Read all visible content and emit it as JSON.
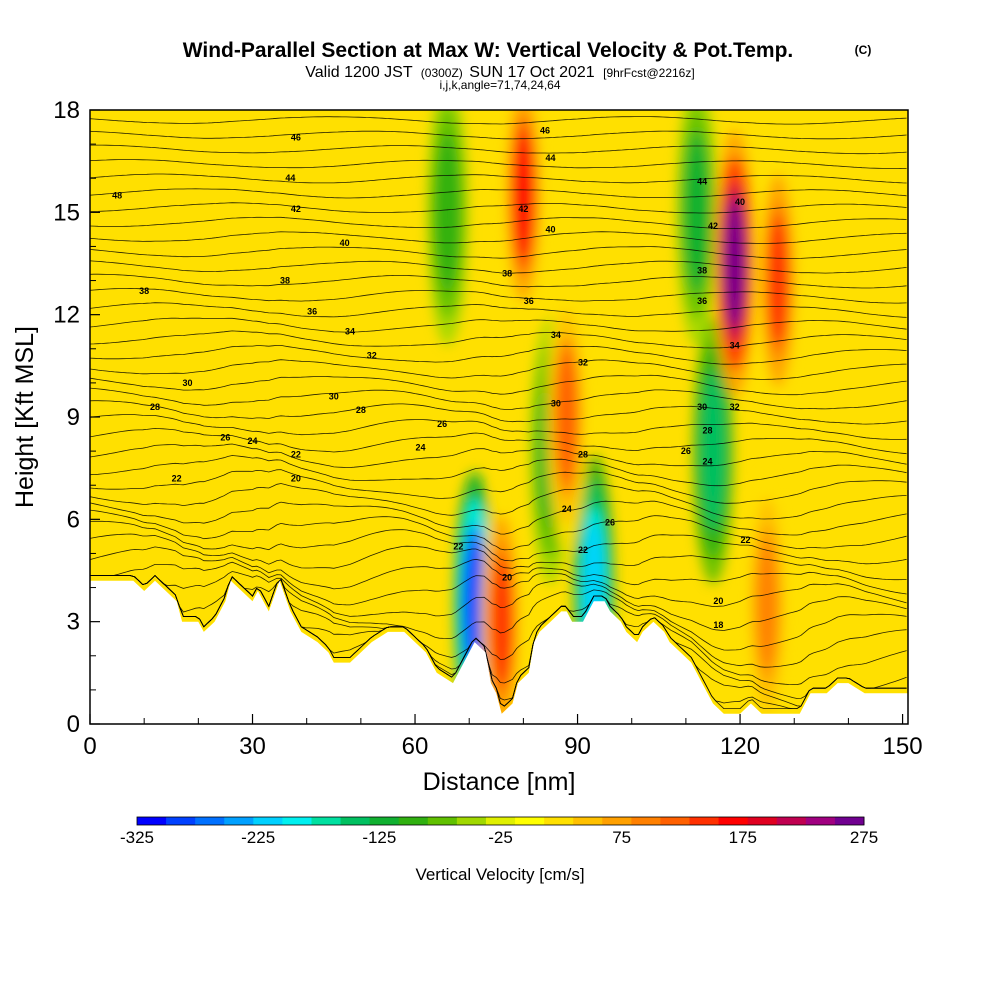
{
  "title": {
    "main": "Wind-Parallel Section at Max W: Vertical Velocity & Pot.Temp.",
    "copyright": "(C)",
    "valid_prefix": "Valid 1200 JST",
    "valid_utc": "(0300Z)",
    "valid_date": "SUN 17 Oct 2021",
    "forecast": "[9hrFcst@2216z]",
    "indices": "i,j,k,angle=71,74,24,64"
  },
  "chart_data": {
    "type": "heatmap",
    "xlabel": "Distance [nm]",
    "ylabel": "Height [Kft MSL]",
    "xlim": [
      0,
      151
    ],
    "ylim": [
      0,
      18
    ],
    "x_ticks": [
      0,
      30,
      60,
      90,
      120,
      150
    ],
    "x_tick_labels": [
      "0",
      "30",
      "60",
      "90",
      "120",
      "150"
    ],
    "y_ticks": [
      0,
      3,
      6,
      9,
      12,
      15,
      18
    ],
    "y_tick_labels": [
      "0",
      "3",
      "6",
      "9",
      "12",
      "15",
      "18"
    ],
    "grid": false,
    "colorbar": {
      "title": "Vertical Velocity [cm/s]",
      "min": -325,
      "max": 275,
      "step": 25,
      "tick_values": [
        -325,
        -225,
        -125,
        -25,
        75,
        175,
        275
      ],
      "tick_labels": [
        "-325",
        "-225",
        "-125",
        "-25",
        "75",
        "175",
        "275"
      ],
      "colors": [
        "#0000ff",
        "#0040ff",
        "#0070ff",
        "#00a0ff",
        "#00d0ff",
        "#00f0f0",
        "#00e0a0",
        "#00c060",
        "#10b030",
        "#30b010",
        "#60c000",
        "#a0d800",
        "#e0f000",
        "#ffff00",
        "#ffe000",
        "#ffc000",
        "#ffa000",
        "#ff8000",
        "#ff6000",
        "#ff3000",
        "#ff0000",
        "#e00020",
        "#c00050",
        "#a00080",
        "#700090"
      ]
    },
    "terrain": [
      [
        0,
        4.2
      ],
      [
        8,
        4.2
      ],
      [
        10,
        3.9
      ],
      [
        12,
        4.2
      ],
      [
        16,
        3.6
      ],
      [
        17,
        3.0
      ],
      [
        20,
        3.0
      ],
      [
        21,
        2.7
      ],
      [
        23,
        3.0
      ],
      [
        25,
        3.6
      ],
      [
        26,
        4.2
      ],
      [
        28,
        3.9
      ],
      [
        30,
        3.6
      ],
      [
        31,
        3.9
      ],
      [
        33,
        3.3
      ],
      [
        35,
        4.2
      ],
      [
        37,
        3.3
      ],
      [
        39,
        2.7
      ],
      [
        42,
        2.4
      ],
      [
        44,
        2.1
      ],
      [
        45,
        1.8
      ],
      [
        48,
        1.8
      ],
      [
        50,
        2.1
      ],
      [
        52,
        2.4
      ],
      [
        55,
        2.7
      ],
      [
        58,
        2.7
      ],
      [
        60,
        2.4
      ],
      [
        62,
        2.1
      ],
      [
        64,
        1.5
      ],
      [
        67,
        1.2
      ],
      [
        69,
        1.8
      ],
      [
        71,
        2.4
      ],
      [
        73,
        2.1
      ],
      [
        74,
        1.2
      ],
      [
        75,
        0.9
      ],
      [
        76,
        0.3
      ],
      [
        78,
        0.6
      ],
      [
        79,
        1.2
      ],
      [
        81,
        1.5
      ],
      [
        82,
        2.4
      ],
      [
        83,
        2.7
      ],
      [
        85,
        3.0
      ],
      [
        87,
        3.3
      ],
      [
        88,
        3.3
      ],
      [
        89,
        3.0
      ],
      [
        91,
        3.0
      ],
      [
        92,
        3.3
      ],
      [
        93,
        3.6
      ],
      [
        95,
        3.6
      ],
      [
        96,
        3.3
      ],
      [
        98,
        3.0
      ],
      [
        99,
        2.7
      ],
      [
        101,
        2.4
      ],
      [
        102,
        2.7
      ],
      [
        104,
        3.0
      ],
      [
        106,
        2.7
      ],
      [
        107,
        2.4
      ],
      [
        109,
        2.1
      ],
      [
        111,
        1.8
      ],
      [
        113,
        1.2
      ],
      [
        115,
        0.6
      ],
      [
        117,
        0.3
      ],
      [
        120,
        0.3
      ],
      [
        122,
        0.6
      ],
      [
        124,
        0.3
      ],
      [
        127,
        0.3
      ],
      [
        131,
        0.3
      ],
      [
        133,
        0.9
      ],
      [
        136,
        0.9
      ],
      [
        138,
        1.2
      ],
      [
        140,
        1.2
      ],
      [
        143,
        0.9
      ],
      [
        146,
        0.9
      ],
      [
        151,
        0.9
      ]
    ],
    "updraft_cores": [
      {
        "x": 80,
        "y": 15.5,
        "w": 175
      },
      {
        "x": 119,
        "y": 13.5,
        "w": 275
      },
      {
        "x": 127,
        "y": 13.0,
        "w": 150
      },
      {
        "x": 76,
        "y": 3.0,
        "w": 150
      },
      {
        "x": 88,
        "y": 9.0,
        "w": 140
      },
      {
        "x": 125,
        "y": 3.5,
        "w": 120
      }
    ],
    "downdraft_cores": [
      {
        "x": 71,
        "y": 3.5,
        "w": -300
      },
      {
        "x": 93,
        "y": 4.0,
        "w": -225
      },
      {
        "x": 115,
        "y": 8.0,
        "w": -150
      },
      {
        "x": 112,
        "y": 15.0,
        "w": -125
      },
      {
        "x": 66,
        "y": 15.0,
        "w": -100
      },
      {
        "x": 85,
        "y": 8.0,
        "w": -110
      }
    ],
    "theta_labels": [
      {
        "value": "48",
        "x": 5,
        "y": 15.5
      },
      {
        "value": "46",
        "x": 38,
        "y": 17.2
      },
      {
        "value": "44",
        "x": 37,
        "y": 16.0
      },
      {
        "value": "42",
        "x": 38,
        "y": 15.1
      },
      {
        "value": "40",
        "x": 47,
        "y": 14.1
      },
      {
        "value": "38",
        "x": 10,
        "y": 12.7
      },
      {
        "value": "38",
        "x": 36,
        "y": 13.0
      },
      {
        "value": "36",
        "x": 41,
        "y": 12.1
      },
      {
        "value": "34",
        "x": 48,
        "y": 11.5
      },
      {
        "value": "32",
        "x": 52,
        "y": 10.8
      },
      {
        "value": "30",
        "x": 18,
        "y": 10.0
      },
      {
        "value": "30",
        "x": 45,
        "y": 9.6
      },
      {
        "value": "28",
        "x": 12,
        "y": 9.3
      },
      {
        "value": "28",
        "x": 50,
        "y": 9.2
      },
      {
        "value": "26",
        "x": 25,
        "y": 8.4
      },
      {
        "value": "26",
        "x": 65,
        "y": 8.8
      },
      {
        "value": "24",
        "x": 30,
        "y": 8.3
      },
      {
        "value": "24",
        "x": 61,
        "y": 8.1
      },
      {
        "value": "22",
        "x": 38,
        "y": 7.9
      },
      {
        "value": "22",
        "x": 16,
        "y": 7.2
      },
      {
        "value": "20",
        "x": 38,
        "y": 7.2
      },
      {
        "value": "46",
        "x": 84,
        "y": 17.4
      },
      {
        "value": "44",
        "x": 85,
        "y": 16.6
      },
      {
        "value": "42",
        "x": 80,
        "y": 15.1
      },
      {
        "value": "40",
        "x": 85,
        "y": 14.5
      },
      {
        "value": "38",
        "x": 77,
        "y": 13.2
      },
      {
        "value": "36",
        "x": 81,
        "y": 12.4
      },
      {
        "value": "34",
        "x": 86,
        "y": 11.4
      },
      {
        "value": "32",
        "x": 91,
        "y": 10.6
      },
      {
        "value": "30",
        "x": 86,
        "y": 9.4
      },
      {
        "value": "28",
        "x": 91,
        "y": 7.9
      },
      {
        "value": "24",
        "x": 88,
        "y": 6.3
      },
      {
        "value": "26",
        "x": 96,
        "y": 5.9
      },
      {
        "value": "22",
        "x": 68,
        "y": 5.2
      },
      {
        "value": "22",
        "x": 91,
        "y": 5.1
      },
      {
        "value": "20",
        "x": 77,
        "y": 4.3
      },
      {
        "value": "44",
        "x": 113,
        "y": 15.9
      },
      {
        "value": "42",
        "x": 115,
        "y": 14.6
      },
      {
        "value": "40",
        "x": 120,
        "y": 15.3
      },
      {
        "value": "38",
        "x": 113,
        "y": 13.3
      },
      {
        "value": "36",
        "x": 113,
        "y": 12.4
      },
      {
        "value": "34",
        "x": 119,
        "y": 11.1
      },
      {
        "value": "32",
        "x": 119,
        "y": 9.3
      },
      {
        "value": "30",
        "x": 113,
        "y": 9.3
      },
      {
        "value": "28",
        "x": 114,
        "y": 8.6
      },
      {
        "value": "26",
        "x": 110,
        "y": 8.0
      },
      {
        "value": "24",
        "x": 114,
        "y": 7.7
      },
      {
        "value": "22",
        "x": 121,
        "y": 5.4
      },
      {
        "value": "20",
        "x": 116,
        "y": 3.6
      },
      {
        "value": "18",
        "x": 116,
        "y": 2.9
      }
    ]
  }
}
